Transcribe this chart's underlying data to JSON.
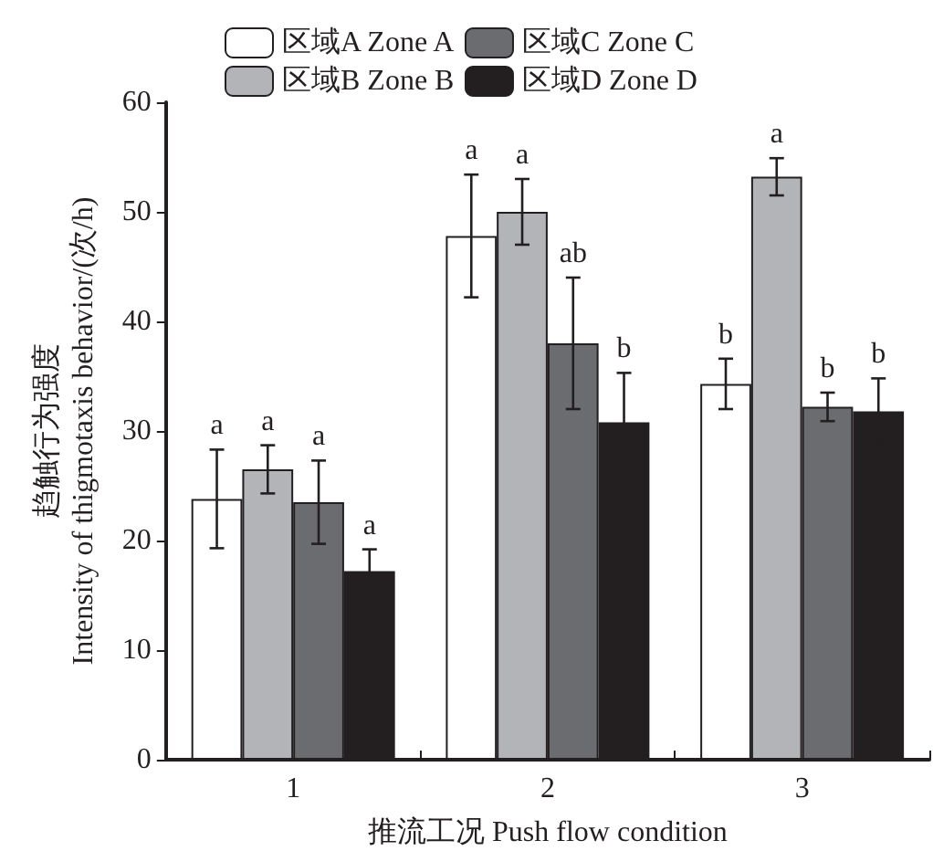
{
  "chart_data": {
    "type": "bar",
    "xlabel": "推流工况 Push flow condition",
    "ylabel": "趋触行为强度\nIntensity of thigmotaxis behavior/(次/h)",
    "categories": [
      "1",
      "2",
      "3"
    ],
    "ylim": [
      0,
      60
    ],
    "yticks": [
      0,
      10,
      20,
      30,
      40,
      50,
      60
    ],
    "grid": false,
    "legend": "top",
    "series": [
      {
        "name": "区域A Zone A",
        "color": "#ffffff",
        "values": [
          23.8,
          47.8,
          34.3
        ],
        "errors": [
          4.5,
          5.6,
          2.3
        ],
        "value_labels": [
          "a",
          "a",
          "b"
        ]
      },
      {
        "name": "区域B Zone B",
        "color": "#b3b4b8",
        "values": [
          26.5,
          50.0,
          53.2
        ],
        "errors": [
          2.2,
          3.0,
          1.7
        ],
        "value_labels": [
          "a",
          "a",
          "a"
        ]
      },
      {
        "name": "区域C Zone C",
        "color": "#6b6c70",
        "values": [
          23.5,
          38.0,
          32.2
        ],
        "errors": [
          3.8,
          6.0,
          1.3
        ],
        "value_labels": [
          "a",
          "ab",
          "b"
        ]
      },
      {
        "name": "区域D Zone D",
        "color": "#231f20",
        "values": [
          17.2,
          30.8,
          31.8
        ],
        "errors": [
          2.0,
          4.5,
          3.0
        ],
        "value_labels": [
          "a",
          "b",
          "b"
        ]
      }
    ]
  }
}
